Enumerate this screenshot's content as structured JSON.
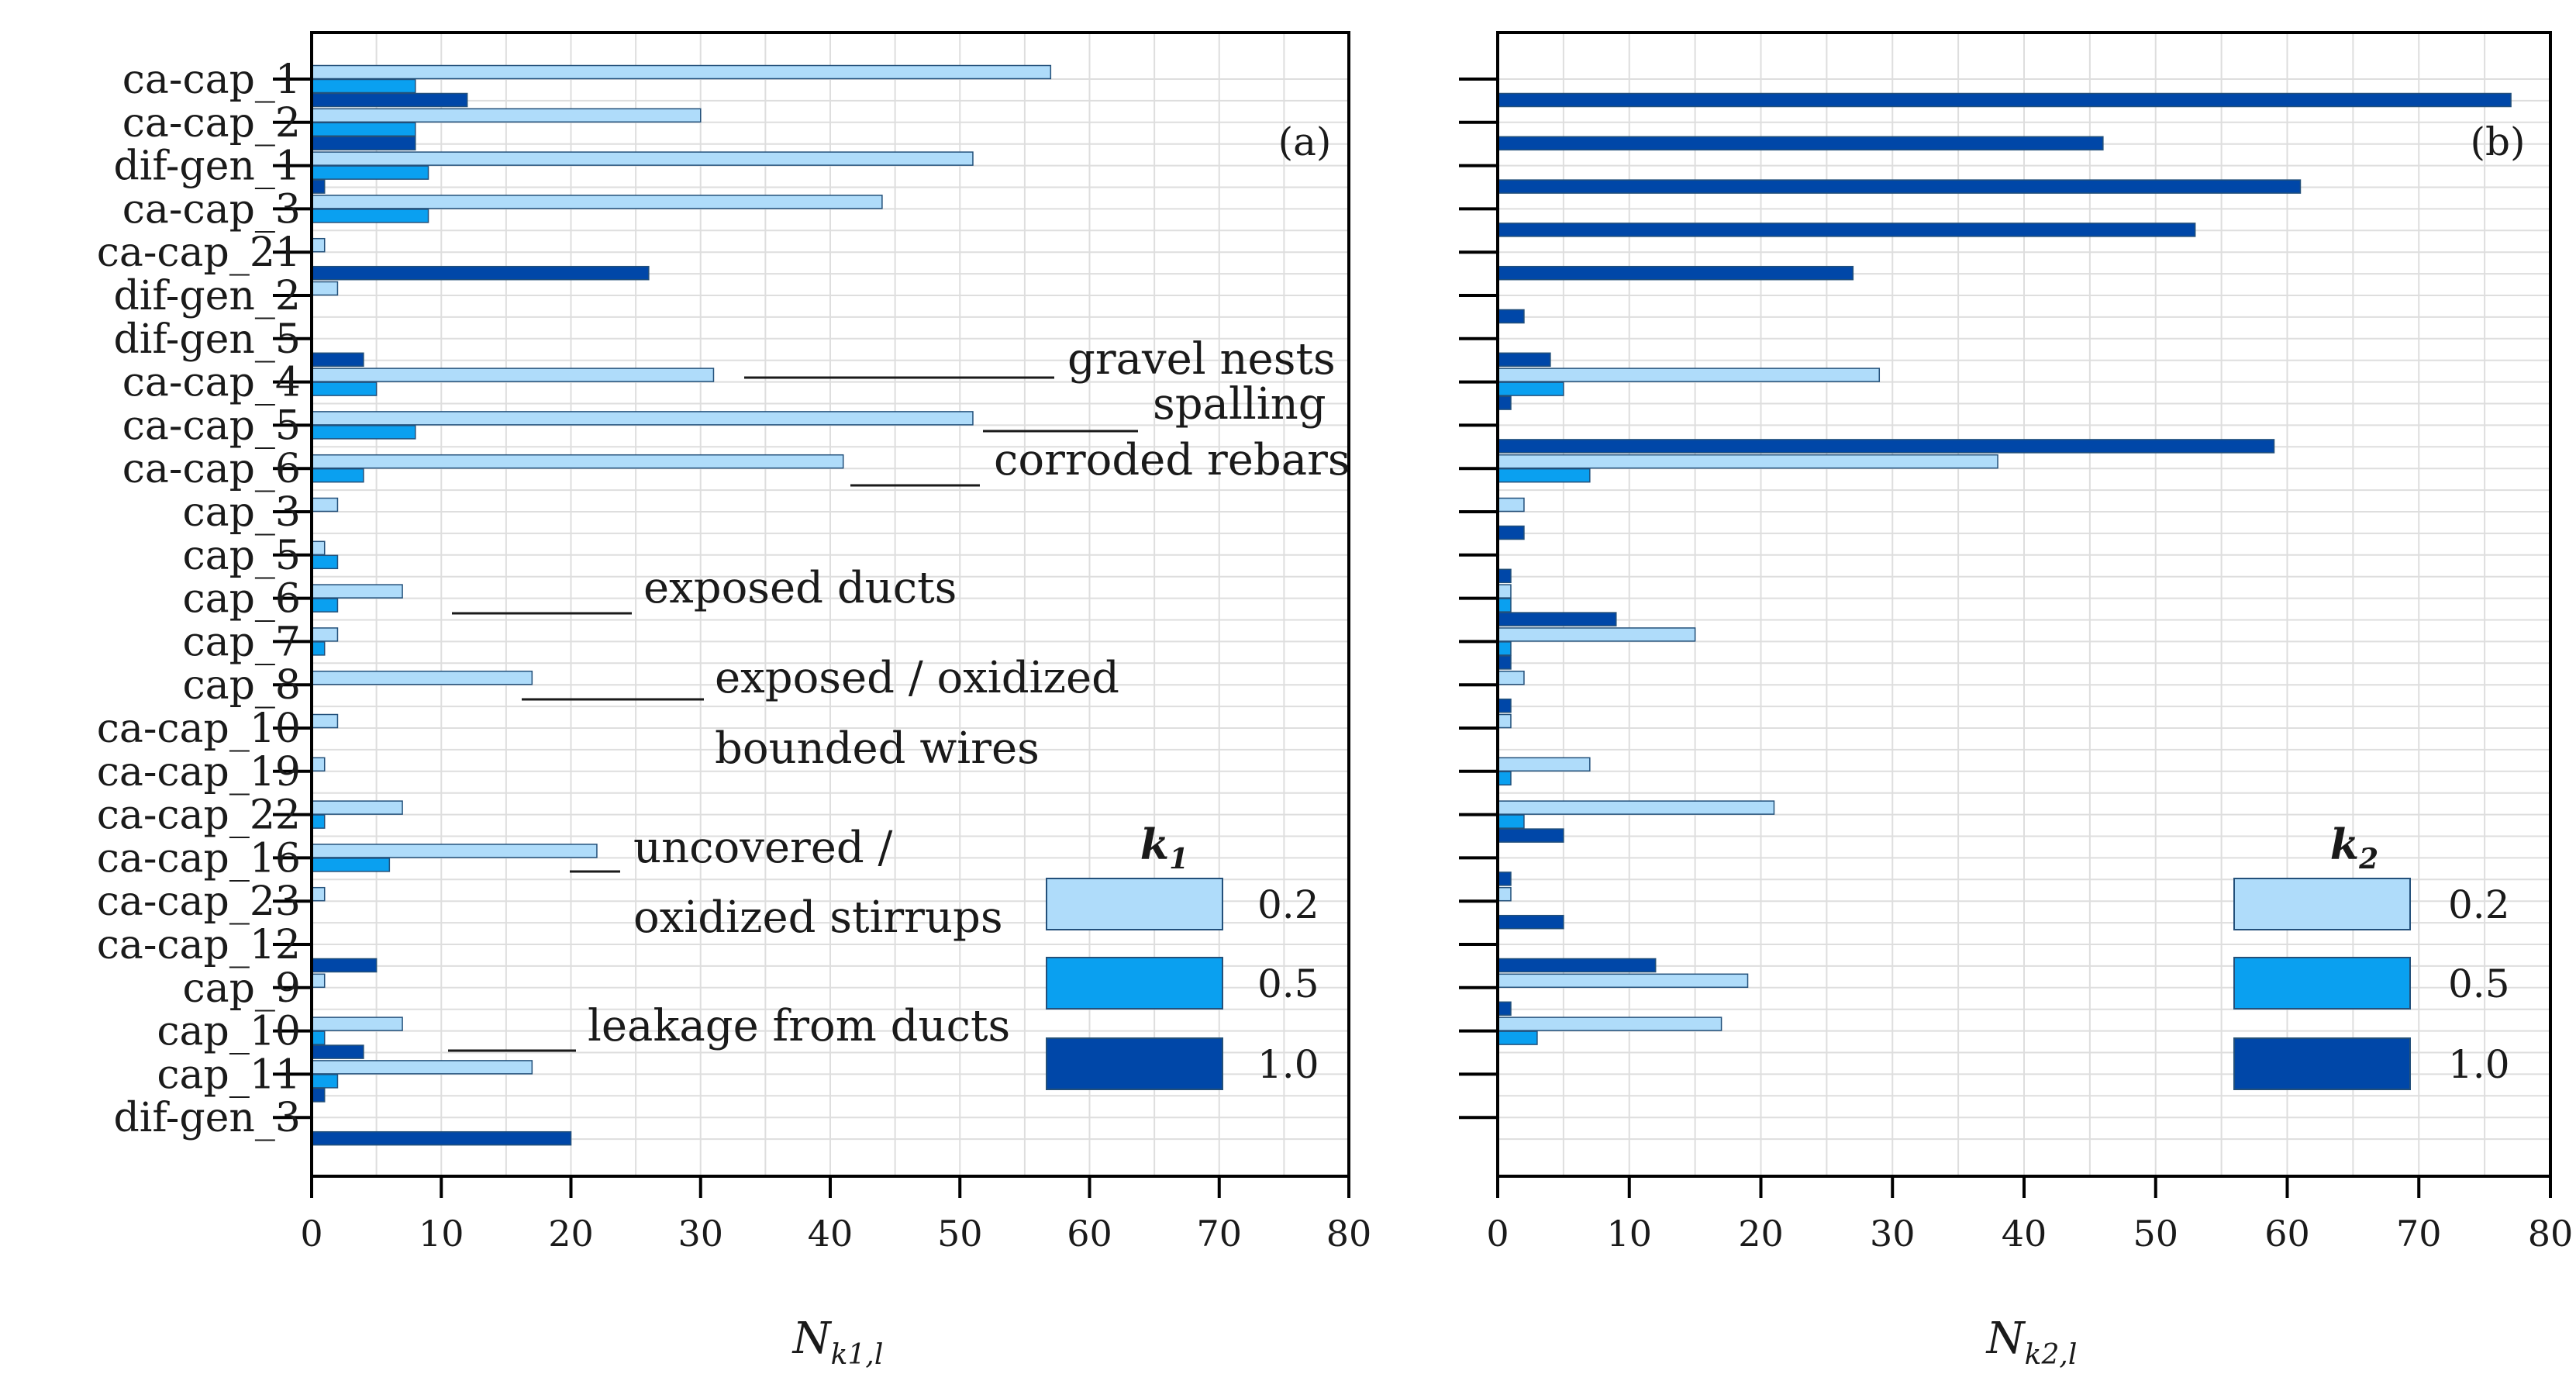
{
  "colors": {
    "k_0_2": "#afdcfa",
    "k_0_5": "#0aa0f0",
    "k_1_0": "#0047a8",
    "grid": "#dedede",
    "axis": "#000000"
  },
  "chart_data": [
    {
      "type": "bar",
      "orientation": "horizontal",
      "panel_tag": "(a)",
      "xlabel_main": "N",
      "xlabel_sub": "k1,l",
      "legend_title_main": "k",
      "legend_title_sub": "1",
      "legend_position": "bottom-right",
      "xlim": [
        0,
        80
      ],
      "xticks": [
        "0",
        "10",
        "20",
        "30",
        "40",
        "50",
        "60",
        "70",
        "80"
      ],
      "grid": true,
      "categories": [
        "ca-cap_1",
        "ca-cap_2",
        "dif-gen_1",
        "ca-cap_3",
        "ca-cap_21",
        "dif-gen_2",
        "dif-gen_5",
        "ca-cap_4",
        "ca-cap_5",
        "ca-cap_6",
        "cap_3",
        "cap_5",
        "cap_6",
        "cap_7",
        "cap_8",
        "ca-cap_10",
        "ca-cap_19",
        "ca-cap_22",
        "ca-cap_16",
        "ca-cap_23",
        "ca-cap_12",
        "cap_9",
        "cap_10",
        "cap_11",
        "dif-gen_3"
      ],
      "series": [
        {
          "name": "0.2",
          "values": [
            57,
            30,
            51,
            44,
            1,
            2,
            0,
            31,
            51,
            41,
            2,
            1,
            7,
            2,
            17,
            2,
            1,
            7,
            22,
            1,
            0,
            1,
            7,
            17,
            0
          ]
        },
        {
          "name": "0.5",
          "values": [
            8,
            8,
            9,
            9,
            0,
            0,
            0,
            5,
            8,
            4,
            0,
            2,
            2,
            1,
            0,
            0,
            0,
            1,
            6,
            0,
            0,
            0,
            1,
            2,
            0
          ]
        },
        {
          "name": "1.0",
          "values": [
            12,
            8,
            1,
            0,
            26,
            0,
            4,
            0,
            0,
            0,
            0,
            0,
            0,
            0,
            0,
            0,
            0,
            0,
            0,
            0,
            5,
            0,
            4,
            1,
            20
          ]
        }
      ],
      "annotations": [
        {
          "text": "gravel nests",
          "x": 58,
          "y": "ca-cap_4"
        },
        {
          "text": "spalling",
          "x": 62,
          "y": "ca-cap_5"
        },
        {
          "text": "corroded rebars",
          "x": 58,
          "y": "ca-cap_6"
        },
        {
          "text": "exposed ducts",
          "x": 25,
          "y": "cap_6"
        },
        {
          "text": "exposed / oxidized",
          "x": 30,
          "y": "cap_8"
        },
        {
          "text": "bounded wires",
          "x": 30,
          "y": "ca-cap_10"
        },
        {
          "text": "uncovered /",
          "x": 25,
          "y": "ca-cap_16"
        },
        {
          "text": "oxidized stirrups",
          "x": 25,
          "y": "ca-cap_23"
        },
        {
          "text": "leakage from ducts",
          "x": 22,
          "y": "cap_10"
        }
      ]
    },
    {
      "type": "bar",
      "orientation": "horizontal",
      "panel_tag": "(b)",
      "xlabel_main": "N",
      "xlabel_sub": "k2,l",
      "legend_title_main": "k",
      "legend_title_sub": "2",
      "legend_position": "bottom-right",
      "xlim": [
        0,
        80
      ],
      "xticks": [
        "0",
        "10",
        "20",
        "30",
        "40",
        "50",
        "60",
        "70",
        "80"
      ],
      "grid": true,
      "categories": [
        "ca-cap_1",
        "ca-cap_2",
        "dif-gen_1",
        "ca-cap_3",
        "ca-cap_21",
        "dif-gen_2",
        "dif-gen_5",
        "ca-cap_4",
        "ca-cap_5",
        "ca-cap_6",
        "cap_3",
        "cap_5",
        "cap_6",
        "cap_7",
        "cap_8",
        "ca-cap_10",
        "ca-cap_19",
        "ca-cap_22",
        "ca-cap_16",
        "ca-cap_23",
        "ca-cap_12",
        "cap_9",
        "cap_10",
        "cap_11",
        "dif-gen_3"
      ],
      "series": [
        {
          "name": "0.2",
          "values": [
            0,
            0,
            0,
            0,
            0,
            0,
            0,
            29,
            0,
            38,
            2,
            0,
            1,
            15,
            2,
            1,
            7,
            21,
            0,
            1,
            0,
            19,
            17,
            0,
            0
          ]
        },
        {
          "name": "0.5",
          "values": [
            0,
            0,
            0,
            0,
            0,
            0,
            0,
            5,
            0,
            7,
            0,
            0,
            1,
            1,
            0,
            0,
            1,
            2,
            0,
            0,
            0,
            0,
            3,
            0,
            0
          ]
        },
        {
          "name": "1.0",
          "values": [
            77,
            46,
            61,
            53,
            27,
            2,
            4,
            1,
            59,
            0,
            2,
            1,
            9,
            1,
            1,
            0,
            0,
            5,
            1,
            5,
            12,
            1,
            0,
            0,
            0
          ]
        }
      ]
    }
  ]
}
